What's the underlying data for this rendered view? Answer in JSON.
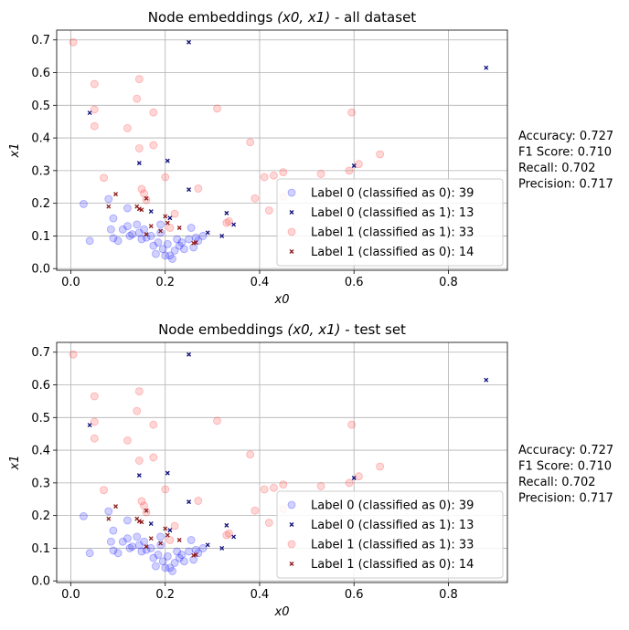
{
  "chart_data": [
    {
      "type": "scatter",
      "title_prefix": "Node embeddings ",
      "title_math": "(x0, x1)",
      "title_suffix": " - all dataset",
      "xlabel": "x0",
      "ylabel": "x1",
      "xlim": [
        -0.03,
        0.925
      ],
      "ylim": [
        -0.005,
        0.73
      ],
      "xticks": [
        0.0,
        0.2,
        0.4,
        0.6,
        0.8
      ],
      "xtick_labels": [
        "0.0",
        "0.2",
        "0.4",
        "0.6",
        "0.8"
      ],
      "yticks": [
        0.0,
        0.1,
        0.2,
        0.3,
        0.4,
        0.5,
        0.6,
        0.7
      ],
      "ytick_labels": [
        "0.0",
        "0.1",
        "0.2",
        "0.3",
        "0.4",
        "0.5",
        "0.6",
        "0.7"
      ],
      "grid": true,
      "legend_position": "lower-right",
      "series": [
        {
          "name": "Label 0 (classified as 0): 39",
          "marker": "circle",
          "color": "#0000ff",
          "points": [
            [
              0.027,
              0.198
            ],
            [
              0.04,
              0.085
            ],
            [
              0.08,
              0.213
            ],
            [
              0.09,
              0.154
            ],
            [
              0.085,
              0.12
            ],
            [
              0.09,
              0.093
            ],
            [
              0.1,
              0.085
            ],
            [
              0.11,
              0.12
            ],
            [
              0.12,
              0.13
            ],
            [
              0.125,
              0.1
            ],
            [
              0.13,
              0.105
            ],
            [
              0.145,
              0.11
            ],
            [
              0.15,
              0.09
            ],
            [
              0.155,
              0.12
            ],
            [
              0.16,
              0.095
            ],
            [
              0.17,
              0.1
            ],
            [
              0.175,
              0.07
            ],
            [
              0.18,
              0.045
            ],
            [
              0.185,
              0.08
            ],
            [
              0.19,
              0.11
            ],
            [
              0.195,
              0.06
            ],
            [
              0.2,
              0.04
            ],
            [
              0.205,
              0.075
            ],
            [
              0.21,
              0.04
            ],
            [
              0.215,
              0.03
            ],
            [
              0.22,
              0.055
            ],
            [
              0.225,
              0.09
            ],
            [
              0.23,
              0.07
            ],
            [
              0.235,
              0.08
            ],
            [
              0.24,
              0.06
            ],
            [
              0.25,
              0.09
            ],
            [
              0.255,
              0.125
            ],
            [
              0.26,
              0.065
            ],
            [
              0.265,
              0.095
            ],
            [
              0.27,
              0.085
            ],
            [
              0.28,
              0.1
            ],
            [
              0.19,
              0.135
            ],
            [
              0.14,
              0.135
            ],
            [
              0.12,
              0.185
            ]
          ]
        },
        {
          "name": "Label 0 (classified as 1): 13",
          "marker": "x",
          "color": "#0d0d7a",
          "points": [
            [
              0.04,
              0.477
            ],
            [
              0.145,
              0.323
            ],
            [
              0.205,
              0.33
            ],
            [
              0.25,
              0.242
            ],
            [
              0.25,
              0.693
            ],
            [
              0.33,
              0.17
            ],
            [
              0.32,
              0.1
            ],
            [
              0.345,
              0.135
            ],
            [
              0.29,
              0.11
            ],
            [
              0.21,
              0.155
            ],
            [
              0.17,
              0.175
            ],
            [
              0.88,
              0.615
            ],
            [
              0.6,
              0.315
            ]
          ]
        },
        {
          "name": "Label 1 (classified as 1): 33",
          "marker": "circle",
          "color": "#ff2020",
          "points": [
            [
              0.005,
              0.693
            ],
            [
              0.05,
              0.565
            ],
            [
              0.05,
              0.487
            ],
            [
              0.05,
              0.436
            ],
            [
              0.12,
              0.43
            ],
            [
              0.14,
              0.52
            ],
            [
              0.145,
              0.58
            ],
            [
              0.175,
              0.478
            ],
            [
              0.145,
              0.368
            ],
            [
              0.175,
              0.378
            ],
            [
              0.2,
              0.28
            ],
            [
              0.07,
              0.278
            ],
            [
              0.15,
              0.244
            ],
            [
              0.155,
              0.23
            ],
            [
              0.16,
              0.21
            ],
            [
              0.22,
              0.168
            ],
            [
              0.27,
              0.245
            ],
            [
              0.31,
              0.49
            ],
            [
              0.38,
              0.387
            ],
            [
              0.39,
              0.215
            ],
            [
              0.41,
              0.28
            ],
            [
              0.43,
              0.285
            ],
            [
              0.45,
              0.295
            ],
            [
              0.42,
              0.178
            ],
            [
              0.45,
              0.22
            ],
            [
              0.53,
              0.29
            ],
            [
              0.59,
              0.3
            ],
            [
              0.595,
              0.478
            ],
            [
              0.61,
              0.32
            ],
            [
              0.655,
              0.35
            ],
            [
              0.335,
              0.145
            ],
            [
              0.33,
              0.14
            ],
            [
              0.21,
              0.125
            ]
          ]
        },
        {
          "name": "Label 1 (classified as 0): 14",
          "marker": "x",
          "color": "#8b1a1a",
          "points": [
            [
              0.08,
              0.19
            ],
            [
              0.095,
              0.228
            ],
            [
              0.14,
              0.19
            ],
            [
              0.145,
              0.183
            ],
            [
              0.16,
              0.215
            ],
            [
              0.16,
              0.105
            ],
            [
              0.17,
              0.13
            ],
            [
              0.19,
              0.115
            ],
            [
              0.2,
              0.16
            ],
            [
              0.205,
              0.14
            ],
            [
              0.23,
              0.125
            ],
            [
              0.26,
              0.078
            ],
            [
              0.265,
              0.08
            ],
            [
              0.15,
              0.18
            ]
          ]
        }
      ],
      "metrics": [
        "Accuracy: 0.727",
        "F1 Score: 0.710",
        "Recall: 0.702",
        "Precision: 0.717"
      ]
    },
    {
      "type": "scatter",
      "title_prefix": "Node embeddings ",
      "title_math": "(x0, x1)",
      "title_suffix": " - test set",
      "xlabel": "x0",
      "ylabel": "x1",
      "xlim": [
        -0.03,
        0.925
      ],
      "ylim": [
        -0.005,
        0.73
      ],
      "xticks": [
        0.0,
        0.2,
        0.4,
        0.6,
        0.8
      ],
      "xtick_labels": [
        "0.0",
        "0.2",
        "0.4",
        "0.6",
        "0.8"
      ],
      "yticks": [
        0.0,
        0.1,
        0.2,
        0.3,
        0.4,
        0.5,
        0.6,
        0.7
      ],
      "ytick_labels": [
        "0.0",
        "0.1",
        "0.2",
        "0.3",
        "0.4",
        "0.5",
        "0.6",
        "0.7"
      ],
      "grid": true,
      "legend_position": "lower-right",
      "series": [
        {
          "name": "Label 0 (classified as 0): 39",
          "marker": "circle",
          "color": "#0000ff",
          "points": [
            [
              0.027,
              0.198
            ],
            [
              0.04,
              0.085
            ],
            [
              0.08,
              0.213
            ],
            [
              0.09,
              0.154
            ],
            [
              0.085,
              0.12
            ],
            [
              0.09,
              0.093
            ],
            [
              0.1,
              0.085
            ],
            [
              0.11,
              0.12
            ],
            [
              0.12,
              0.13
            ],
            [
              0.125,
              0.1
            ],
            [
              0.13,
              0.105
            ],
            [
              0.145,
              0.11
            ],
            [
              0.15,
              0.09
            ],
            [
              0.155,
              0.12
            ],
            [
              0.16,
              0.095
            ],
            [
              0.17,
              0.1
            ],
            [
              0.175,
              0.07
            ],
            [
              0.18,
              0.045
            ],
            [
              0.185,
              0.08
            ],
            [
              0.19,
              0.11
            ],
            [
              0.195,
              0.06
            ],
            [
              0.2,
              0.04
            ],
            [
              0.205,
              0.075
            ],
            [
              0.21,
              0.04
            ],
            [
              0.215,
              0.03
            ],
            [
              0.22,
              0.055
            ],
            [
              0.225,
              0.09
            ],
            [
              0.23,
              0.07
            ],
            [
              0.235,
              0.08
            ],
            [
              0.24,
              0.06
            ],
            [
              0.25,
              0.09
            ],
            [
              0.255,
              0.125
            ],
            [
              0.26,
              0.065
            ],
            [
              0.265,
              0.095
            ],
            [
              0.27,
              0.085
            ],
            [
              0.28,
              0.1
            ],
            [
              0.19,
              0.135
            ],
            [
              0.14,
              0.135
            ],
            [
              0.12,
              0.185
            ]
          ]
        },
        {
          "name": "Label 0 (classified as 1): 13",
          "marker": "x",
          "color": "#0d0d7a",
          "points": [
            [
              0.04,
              0.477
            ],
            [
              0.145,
              0.323
            ],
            [
              0.205,
              0.33
            ],
            [
              0.25,
              0.242
            ],
            [
              0.25,
              0.693
            ],
            [
              0.33,
              0.17
            ],
            [
              0.32,
              0.1
            ],
            [
              0.345,
              0.135
            ],
            [
              0.29,
              0.11
            ],
            [
              0.21,
              0.155
            ],
            [
              0.17,
              0.175
            ],
            [
              0.88,
              0.615
            ],
            [
              0.6,
              0.315
            ]
          ]
        },
        {
          "name": "Label 1 (classified as 1): 33",
          "marker": "circle",
          "color": "#ff2020",
          "points": [
            [
              0.005,
              0.693
            ],
            [
              0.05,
              0.565
            ],
            [
              0.05,
              0.487
            ],
            [
              0.05,
              0.436
            ],
            [
              0.12,
              0.43
            ],
            [
              0.14,
              0.52
            ],
            [
              0.145,
              0.58
            ],
            [
              0.175,
              0.478
            ],
            [
              0.145,
              0.368
            ],
            [
              0.175,
              0.378
            ],
            [
              0.2,
              0.28
            ],
            [
              0.07,
              0.278
            ],
            [
              0.15,
              0.244
            ],
            [
              0.155,
              0.23
            ],
            [
              0.16,
              0.21
            ],
            [
              0.22,
              0.168
            ],
            [
              0.27,
              0.245
            ],
            [
              0.31,
              0.49
            ],
            [
              0.38,
              0.387
            ],
            [
              0.39,
              0.215
            ],
            [
              0.41,
              0.28
            ],
            [
              0.43,
              0.285
            ],
            [
              0.45,
              0.295
            ],
            [
              0.42,
              0.178
            ],
            [
              0.45,
              0.22
            ],
            [
              0.53,
              0.29
            ],
            [
              0.59,
              0.3
            ],
            [
              0.595,
              0.478
            ],
            [
              0.61,
              0.32
            ],
            [
              0.655,
              0.35
            ],
            [
              0.335,
              0.145
            ],
            [
              0.33,
              0.14
            ],
            [
              0.21,
              0.125
            ]
          ]
        },
        {
          "name": "Label 1 (classified as 0): 14",
          "marker": "x",
          "color": "#8b1a1a",
          "points": [
            [
              0.08,
              0.19
            ],
            [
              0.095,
              0.228
            ],
            [
              0.14,
              0.19
            ],
            [
              0.145,
              0.183
            ],
            [
              0.16,
              0.215
            ],
            [
              0.16,
              0.105
            ],
            [
              0.17,
              0.13
            ],
            [
              0.19,
              0.115
            ],
            [
              0.2,
              0.16
            ],
            [
              0.205,
              0.14
            ],
            [
              0.23,
              0.125
            ],
            [
              0.26,
              0.078
            ],
            [
              0.265,
              0.08
            ],
            [
              0.15,
              0.18
            ]
          ]
        }
      ],
      "metrics": [
        "Accuracy: 0.727",
        "F1 Score: 0.710",
        "Recall: 0.702",
        "Precision: 0.717"
      ]
    }
  ]
}
